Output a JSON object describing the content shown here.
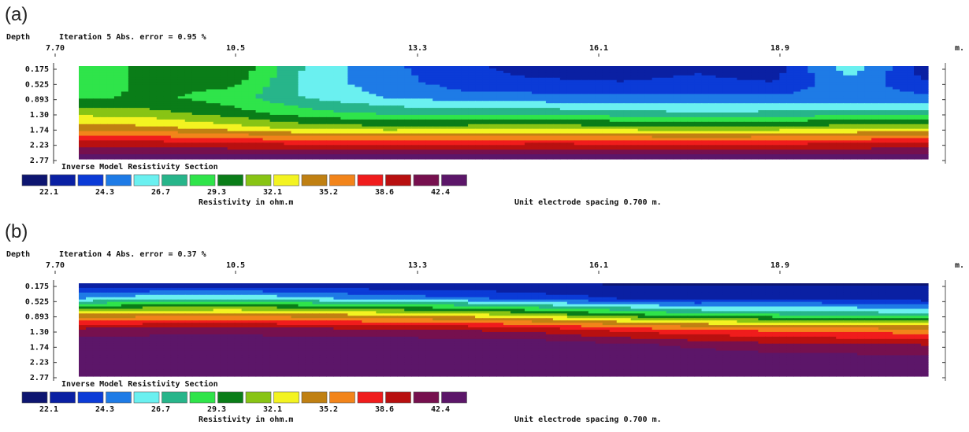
{
  "chart_data": [
    {
      "type": "heatmap",
      "panel_label": "(a)",
      "header_left": "Depth",
      "iteration_label": "Iteration 5 Abs. error = 0.95 %",
      "x_ticks": [
        "7.70",
        "10.5",
        "13.3",
        "16.1",
        "18.9"
      ],
      "x_unit": "m.",
      "xlim": [
        7.7,
        21.0
      ],
      "y_ticks": [
        "0.175",
        "0.525",
        "0.893",
        "1.30",
        "1.74",
        "2.23",
        "2.77"
      ],
      "section_title": "Inverse Model Resistivity Section",
      "legend_values": [
        "22.1",
        "24.3",
        "26.7",
        "29.3",
        "32.1",
        "35.2",
        "38.6",
        "42.4"
      ],
      "legend_units": "Resistivity in ohm.m",
      "spacing_note": "Unit electrode spacing 0.700 m.",
      "model_rows_ohm_m": {
        "0.175": [
          28.5,
          29.8,
          30.5,
          26.3,
          24.5,
          23.6,
          22.4,
          22.6,
          23.0,
          22.6,
          26.4,
          22.3
        ],
        "0.525": [
          28.2,
          29.8,
          29.8,
          26.1,
          24.8,
          23.6,
          23.4,
          23.2,
          23.4,
          23.2,
          25.1,
          23.2
        ],
        "0.893": [
          29.0,
          29.6,
          28.5,
          26.5,
          25.4,
          24.8,
          24.6,
          24.5,
          24.6,
          24.5,
          24.7,
          24.6
        ],
        "1.30": [
          31.5,
          31.0,
          29.8,
          28.4,
          27.6,
          27.4,
          27.4,
          27.0,
          26.8,
          26.9,
          27.1,
          27.2
        ],
        "1.74": [
          34.5,
          34.0,
          32.8,
          31.5,
          31.2,
          31.4,
          31.6,
          31.3,
          30.9,
          31.2,
          31.6,
          32.2
        ],
        "2.23": [
          39.5,
          39.3,
          38.8,
          38.3,
          38.2,
          38.3,
          38.5,
          38.4,
          38.0,
          38.3,
          38.7,
          39.2
        ],
        "2.77": [
          44.0,
          44.0,
          44.0,
          44.0,
          44.0,
          44.0,
          44.0,
          44.0,
          44.0,
          44.0,
          44.0,
          44.0
        ]
      }
    },
    {
      "type": "heatmap",
      "panel_label": "(b)",
      "header_left": "Depth",
      "iteration_label": "Iteration 4 Abs. error = 0.37 %",
      "x_ticks": [
        "7.70",
        "10.5",
        "13.3",
        "16.1",
        "18.9"
      ],
      "x_unit": "m.",
      "xlim": [
        7.7,
        21.0
      ],
      "y_ticks": [
        "0.175",
        "0.525",
        "0.893",
        "1.30",
        "1.74",
        "2.23",
        "2.77"
      ],
      "section_title": "Inverse Model Resistivity Section",
      "legend_values": [
        "22.1",
        "24.3",
        "26.7",
        "29.3",
        "32.1",
        "35.2",
        "38.6",
        "42.4"
      ],
      "legend_units": "Resistivity in ohm.m",
      "spacing_note": "Unit electrode spacing 0.700 m.",
      "model_rows_ohm_m": {
        "0.175": [
          22.0,
          22.0,
          22.0,
          22.0,
          22.0,
          22.0,
          22.0,
          22.0,
          22.0,
          22.0,
          22.0,
          22.0
        ],
        "0.525": [
          25.5,
          26.5,
          26.8,
          25.8,
          25.0,
          24.6,
          23.8,
          23.2,
          22.8,
          23.2,
          23.0,
          22.6
        ],
        "0.893": [
          33.5,
          34.0,
          34.2,
          33.8,
          33.0,
          32.4,
          31.0,
          29.6,
          28.2,
          27.8,
          27.4,
          27.0
        ],
        "1.30": [
          41.0,
          41.5,
          41.6,
          41.2,
          40.8,
          40.4,
          39.6,
          38.0,
          37.0,
          36.4,
          36.0,
          35.6
        ],
        "1.74": [
          44.0,
          44.0,
          44.0,
          44.0,
          44.0,
          44.0,
          43.8,
          43.0,
          42.0,
          41.2,
          40.8,
          40.6
        ],
        "2.23": [
          44.0,
          44.0,
          44.0,
          44.0,
          44.0,
          44.0,
          44.0,
          44.0,
          44.0,
          43.8,
          43.6,
          43.5
        ],
        "2.77": [
          44.0,
          44.0,
          44.0,
          44.0,
          44.0,
          44.0,
          44.0,
          44.0,
          44.0,
          44.0,
          44.0,
          44.0
        ]
      }
    }
  ],
  "colors": {
    "scale": [
      "#0d1570",
      "#0a20a3",
      "#0b3bd7",
      "#1e7be6",
      "#6af0f0",
      "#27b58a",
      "#2fe44a",
      "#0a7d18",
      "#88c414",
      "#f3f321",
      "#c08012",
      "#f2841a",
      "#f01c1c",
      "#b81010",
      "#76104e",
      "#5c1669"
    ]
  }
}
